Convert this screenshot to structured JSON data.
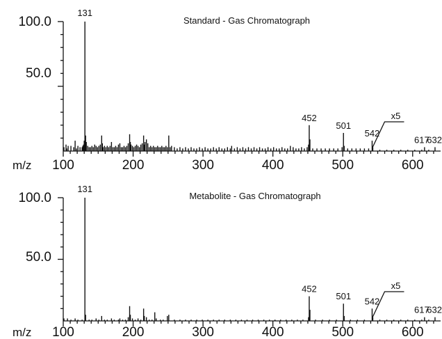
{
  "chart_data": [
    {
      "type": "bar",
      "title": "Standard - Gas Chromatograph",
      "xlabel": "m/z",
      "ylabel": "",
      "xlim": [
        100,
        640
      ],
      "ylim": [
        0,
        100
      ],
      "x_ticks": [
        "100",
        "200",
        "300",
        "400",
        "500",
        "600"
      ],
      "y_ticks": [
        "100.0",
        "50.0"
      ],
      "magnification_label": "x5",
      "magnification_start_mz": 540,
      "peak_labels": [
        "131",
        "452",
        "501",
        "542",
        "617",
        "632"
      ],
      "peaks": [
        [
          101,
          3
        ],
        [
          104,
          5
        ],
        [
          105,
          2
        ],
        [
          107,
          4
        ],
        [
          111,
          4
        ],
        [
          115,
          3
        ],
        [
          117,
          8
        ],
        [
          119,
          2
        ],
        [
          121,
          4
        ],
        [
          124,
          3
        ],
        [
          127,
          3
        ],
        [
          128,
          4
        ],
        [
          129,
          5
        ],
        [
          130,
          8
        ],
        [
          131,
          100
        ],
        [
          132,
          12
        ],
        [
          133,
          7
        ],
        [
          135,
          4
        ],
        [
          137,
          3
        ],
        [
          139,
          3
        ],
        [
          141,
          4
        ],
        [
          143,
          3
        ],
        [
          145,
          5
        ],
        [
          147,
          4
        ],
        [
          149,
          3
        ],
        [
          151,
          4
        ],
        [
          153,
          5
        ],
        [
          155,
          12
        ],
        [
          156,
          6
        ],
        [
          157,
          3
        ],
        [
          159,
          4
        ],
        [
          161,
          3
        ],
        [
          163,
          4
        ],
        [
          165,
          3
        ],
        [
          167,
          4
        ],
        [
          169,
          7
        ],
        [
          171,
          3
        ],
        [
          173,
          3
        ],
        [
          175,
          4
        ],
        [
          177,
          3
        ],
        [
          179,
          5
        ],
        [
          181,
          6
        ],
        [
          183,
          3
        ],
        [
          185,
          3
        ],
        [
          187,
          4
        ],
        [
          189,
          3
        ],
        [
          191,
          4
        ],
        [
          193,
          6
        ],
        [
          195,
          13
        ],
        [
          196,
          7
        ],
        [
          197,
          5
        ],
        [
          199,
          4
        ],
        [
          201,
          3
        ],
        [
          203,
          4
        ],
        [
          205,
          5
        ],
        [
          207,
          4
        ],
        [
          209,
          3
        ],
        [
          211,
          5
        ],
        [
          213,
          6
        ],
        [
          215,
          12
        ],
        [
          216,
          5
        ],
        [
          217,
          7
        ],
        [
          219,
          9
        ],
        [
          221,
          6
        ],
        [
          223,
          3
        ],
        [
          225,
          4
        ],
        [
          227,
          3
        ],
        [
          229,
          4
        ],
        [
          231,
          3
        ],
        [
          233,
          3
        ],
        [
          235,
          4
        ],
        [
          237,
          3
        ],
        [
          239,
          3
        ],
        [
          241,
          4
        ],
        [
          243,
          3
        ],
        [
          245,
          3
        ],
        [
          247,
          4
        ],
        [
          249,
          3
        ],
        [
          251,
          12
        ],
        [
          253,
          3
        ],
        [
          255,
          4
        ],
        [
          259,
          3
        ],
        [
          263,
          2
        ],
        [
          267,
          3
        ],
        [
          271,
          2
        ],
        [
          275,
          3
        ],
        [
          279,
          2
        ],
        [
          283,
          3
        ],
        [
          287,
          2
        ],
        [
          291,
          2
        ],
        [
          295,
          3
        ],
        [
          299,
          2
        ],
        [
          303,
          3
        ],
        [
          307,
          2
        ],
        [
          311,
          2
        ],
        [
          315,
          3
        ],
        [
          319,
          2
        ],
        [
          323,
          3
        ],
        [
          327,
          2
        ],
        [
          331,
          2
        ],
        [
          335,
          3
        ],
        [
          339,
          2
        ],
        [
          341,
          4
        ],
        [
          345,
          2
        ],
        [
          349,
          3
        ],
        [
          353,
          2
        ],
        [
          357,
          3
        ],
        [
          361,
          2
        ],
        [
          365,
          3
        ],
        [
          369,
          2
        ],
        [
          373,
          3
        ],
        [
          377,
          2
        ],
        [
          381,
          3
        ],
        [
          385,
          2
        ],
        [
          389,
          2
        ],
        [
          393,
          3
        ],
        [
          397,
          2
        ],
        [
          401,
          3
        ],
        [
          405,
          2
        ],
        [
          409,
          2
        ],
        [
          413,
          3
        ],
        [
          417,
          2
        ],
        [
          421,
          2
        ],
        [
          425,
          4
        ],
        [
          429,
          3
        ],
        [
          433,
          2
        ],
        [
          437,
          2
        ],
        [
          441,
          3
        ],
        [
          445,
          2
        ],
        [
          449,
          3
        ],
        [
          451,
          5
        ],
        [
          452,
          20
        ],
        [
          453,
          9
        ],
        [
          457,
          2
        ],
        [
          463,
          2
        ],
        [
          469,
          2
        ],
        [
          475,
          2
        ],
        [
          481,
          2
        ],
        [
          487,
          2
        ],
        [
          493,
          2
        ],
        [
          499,
          3
        ],
        [
          501,
          14
        ],
        [
          502,
          4
        ],
        [
          507,
          2
        ],
        [
          513,
          2
        ],
        [
          519,
          2
        ],
        [
          525,
          2
        ],
        [
          531,
          2
        ],
        [
          537,
          2
        ],
        [
          542,
          8
        ],
        [
          543,
          3
        ],
        [
          553,
          1
        ],
        [
          563,
          1
        ],
        [
          573,
          1
        ],
        [
          583,
          1
        ],
        [
          593,
          1
        ],
        [
          603,
          1
        ],
        [
          613,
          1
        ],
        [
          617,
          3
        ],
        [
          623,
          1
        ],
        [
          632,
          3
        ]
      ]
    },
    {
      "type": "bar",
      "title": "Metabolite - Gas Chromatograph",
      "xlabel": "m/z",
      "ylabel": "",
      "xlim": [
        100,
        640
      ],
      "ylim": [
        0,
        100
      ],
      "x_ticks": [
        "100",
        "200",
        "300",
        "400",
        "500",
        "600"
      ],
      "y_ticks": [
        "100.0",
        "50.0"
      ],
      "magnification_label": "x5",
      "magnification_start_mz": 540,
      "peak_labels": [
        "131",
        "452",
        "501",
        "542",
        "617",
        "632"
      ],
      "peaks": [
        [
          101,
          2
        ],
        [
          106,
          2
        ],
        [
          111,
          1
        ],
        [
          117,
          2
        ],
        [
          121,
          1
        ],
        [
          127,
          1
        ],
        [
          131,
          100
        ],
        [
          132,
          5
        ],
        [
          137,
          1
        ],
        [
          141,
          1
        ],
        [
          147,
          2
        ],
        [
          151,
          1
        ],
        [
          155,
          4
        ],
        [
          159,
          1
        ],
        [
          163,
          1
        ],
        [
          169,
          2
        ],
        [
          173,
          1
        ],
        [
          179,
          1
        ],
        [
          181,
          2
        ],
        [
          185,
          1
        ],
        [
          189,
          1
        ],
        [
          193,
          3
        ],
        [
          195,
          12
        ],
        [
          196,
          5
        ],
        [
          199,
          2
        ],
        [
          203,
          1
        ],
        [
          207,
          2
        ],
        [
          211,
          1
        ],
        [
          215,
          10
        ],
        [
          216,
          4
        ],
        [
          219,
          3
        ],
        [
          223,
          1
        ],
        [
          227,
          1
        ],
        [
          231,
          7
        ],
        [
          233,
          2
        ],
        [
          239,
          1
        ],
        [
          243,
          1
        ],
        [
          249,
          4
        ],
        [
          251,
          5
        ],
        [
          259,
          1
        ],
        [
          267,
          1
        ],
        [
          275,
          1
        ],
        [
          283,
          1
        ],
        [
          291,
          1
        ],
        [
          299,
          1
        ],
        [
          307,
          1
        ],
        [
          315,
          1
        ],
        [
          323,
          1
        ],
        [
          331,
          1
        ],
        [
          339,
          1
        ],
        [
          347,
          1
        ],
        [
          355,
          1
        ],
        [
          363,
          1
        ],
        [
          371,
          1
        ],
        [
          379,
          1
        ],
        [
          387,
          1
        ],
        [
          395,
          1
        ],
        [
          403,
          1
        ],
        [
          411,
          1
        ],
        [
          419,
          1
        ],
        [
          427,
          1
        ],
        [
          435,
          1
        ],
        [
          443,
          1
        ],
        [
          451,
          3
        ],
        [
          452,
          20
        ],
        [
          453,
          9
        ],
        [
          461,
          1
        ],
        [
          471,
          1
        ],
        [
          481,
          1
        ],
        [
          491,
          1
        ],
        [
          501,
          14
        ],
        [
          502,
          4
        ],
        [
          511,
          1
        ],
        [
          521,
          1
        ],
        [
          531,
          1
        ],
        [
          542,
          10
        ],
        [
          543,
          3
        ],
        [
          553,
          1
        ],
        [
          563,
          1
        ],
        [
          573,
          1
        ],
        [
          583,
          1
        ],
        [
          593,
          1
        ],
        [
          603,
          1
        ],
        [
          613,
          1
        ],
        [
          617,
          3
        ],
        [
          623,
          1
        ],
        [
          632,
          3
        ]
      ]
    }
  ]
}
